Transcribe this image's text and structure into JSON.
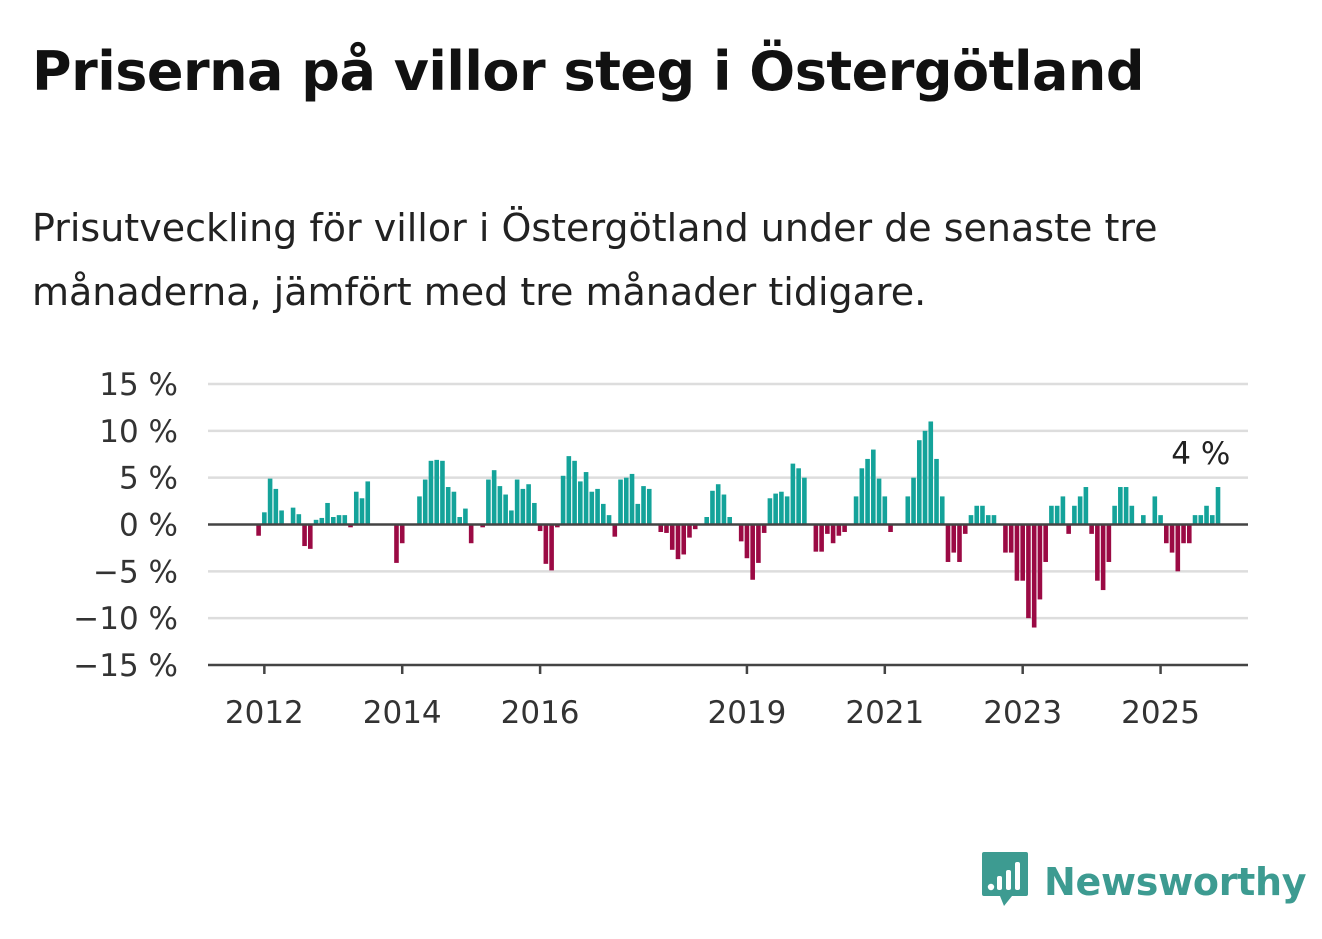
{
  "title": "Priserna på villor steg i Östergötland",
  "subtitle": "Prisutveckling för villor i Östergötland under de senaste tre månaderna, jämfört med tre månader tidigare.",
  "brand": {
    "name": "Newsworthy",
    "color": "#3d9b91",
    "icon": "bar-chart-speech-icon"
  },
  "chart_data": {
    "type": "bar",
    "ylim": [
      -15,
      15
    ],
    "yticks": [
      15,
      10,
      5,
      0,
      -5,
      -10,
      -15
    ],
    "ytick_labels": [
      "15 %",
      "10 %",
      "5 %",
      "0 %",
      "−5 %",
      "−10 %",
      "−15 %"
    ],
    "xticks": [
      {
        "label": "2012",
        "index": 1
      },
      {
        "label": "2014",
        "index": 25
      },
      {
        "label": "2016",
        "index": 49
      },
      {
        "label": "2019",
        "index": 85
      },
      {
        "label": "2021",
        "index": 109
      },
      {
        "label": "2023",
        "index": 133
      },
      {
        "label": "2025",
        "index": 157
      }
    ],
    "colors": {
      "positive": "#14a39a",
      "negative": "#9b0a44",
      "grid": "#dddddd",
      "axis": "#444444"
    },
    "grid": true,
    "annotation": {
      "text": "4 %",
      "index": 164
    },
    "values": [
      -1.2,
      1.3,
      4.9,
      3.8,
      1.5,
      0,
      1.8,
      1.1,
      -2.3,
      -2.6,
      0.5,
      0.7,
      2.3,
      0.8,
      1.0,
      1.0,
      -0.3,
      3.5,
      2.8,
      4.6,
      0,
      0,
      0,
      0,
      -4.1,
      -2.0,
      0,
      0,
      3.0,
      4.8,
      6.8,
      6.9,
      6.8,
      4.0,
      3.5,
      0.8,
      1.7,
      -2.0,
      0,
      -0.3,
      4.8,
      5.8,
      4.1,
      3.2,
      1.5,
      4.8,
      3.8,
      4.3,
      2.3,
      -0.7,
      -4.2,
      -4.9,
      -0.3,
      5.2,
      7.3,
      6.8,
      4.6,
      5.6,
      3.5,
      3.8,
      2.2,
      1.0,
      -1.3,
      4.8,
      5.0,
      5.4,
      2.2,
      4.1,
      3.8,
      0,
      -0.8,
      -0.9,
      -2.7,
      -3.7,
      -3.2,
      -1.4,
      -0.5,
      0,
      0.8,
      3.6,
      4.3,
      3.2,
      0.8,
      0,
      -1.8,
      -3.6,
      -5.9,
      -4.1,
      -0.9,
      2.8,
      3.3,
      3.5,
      3.0,
      6.5,
      6.0,
      5.0,
      0,
      -2.9,
      -2.9,
      -1.0,
      -2.0,
      -1.2,
      -0.8,
      0,
      3.0,
      6.0,
      7.0,
      8.0,
      4.9,
      3.0,
      -0.8,
      0,
      0,
      3.0,
      5.0,
      9.0,
      10.0,
      11.0,
      7.0,
      3.0,
      -4.0,
      -3.0,
      -4.0,
      -1.0,
      1.0,
      2.0,
      2.0,
      1.0,
      1.0,
      0,
      -3.0,
      -3.0,
      -6.0,
      -6.0,
      -10.0,
      -11.0,
      -8.0,
      -4.0,
      2.0,
      2.0,
      3.0,
      -1.0,
      2.0,
      3.0,
      4.0,
      -1.0,
      -6.0,
      -7.0,
      -4.0,
      2.0,
      4.0,
      4.0,
      2.0,
      0,
      1.0,
      0,
      3.0,
      1.0,
      -2.0,
      -3.0,
      -5.0,
      -2.0,
      -2.0,
      1.0,
      1.0,
      2.0,
      1.0,
      4.0
    ]
  }
}
